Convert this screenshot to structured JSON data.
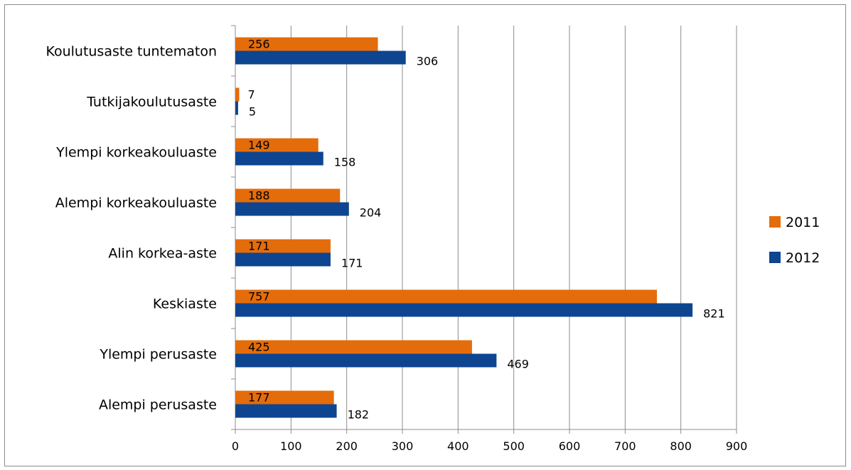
{
  "chart_data": {
    "type": "bar",
    "orientation": "horizontal",
    "title": "",
    "xlabel": "",
    "ylabel": "",
    "xlim": [
      0,
      900
    ],
    "x_ticks": [
      0,
      100,
      200,
      300,
      400,
      500,
      600,
      700,
      800,
      900
    ],
    "grid": "vertical",
    "legend_position": "right",
    "categories": [
      "Koulutusaste tuntematon",
      "Tutkijakoulutusaste",
      "Ylempi korkeakouluaste",
      "Alempi korkeakouluaste",
      "Alin korkea-aste",
      "Keskiaste",
      "Ylempi perusaste",
      "Alempi perusaste"
    ],
    "series": [
      {
        "name": "2011",
        "color": "#E46C0A",
        "values": [
          256,
          7,
          149,
          188,
          171,
          757,
          425,
          177
        ]
      },
      {
        "name": "2012",
        "color": "#0D4590",
        "values": [
          306,
          5,
          158,
          204,
          171,
          821,
          469,
          182
        ]
      }
    ]
  }
}
